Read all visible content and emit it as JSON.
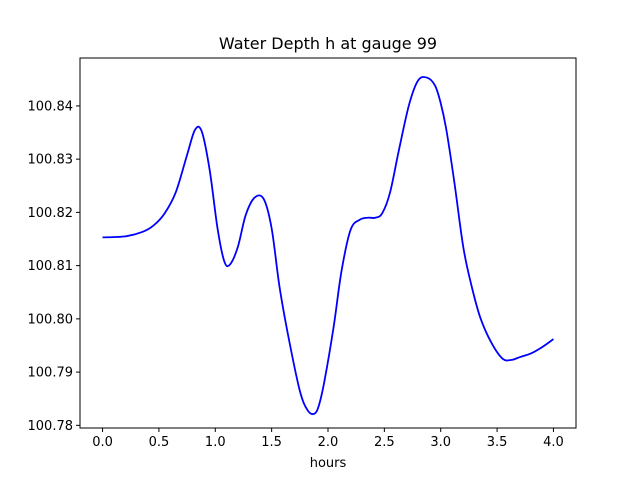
{
  "chart_data": {
    "type": "line",
    "title": "Water Depth h at gauge 99",
    "xlabel": "hours",
    "ylabel": "",
    "xlim": [
      -0.2,
      4.2
    ],
    "ylim": [
      100.7795,
      100.849
    ],
    "xticks": [
      0.0,
      0.5,
      1.0,
      1.5,
      2.0,
      2.5,
      3.0,
      3.5,
      4.0
    ],
    "xtick_labels": [
      "0.0",
      "0.5",
      "1.0",
      "1.5",
      "2.0",
      "2.5",
      "3.0",
      "3.5",
      "4.0"
    ],
    "yticks": [
      100.78,
      100.79,
      100.8,
      100.81,
      100.82,
      100.83,
      100.84
    ],
    "ytick_labels": [
      "100.78",
      "100.79",
      "100.80",
      "100.81",
      "100.82",
      "100.83",
      "100.84"
    ],
    "grid": false,
    "series": [
      {
        "color": "#0000ff",
        "x": [
          0.0,
          0.2,
          0.35,
          0.45,
          0.55,
          0.65,
          0.75,
          0.82,
          0.88,
          0.95,
          1.02,
          1.08,
          1.13,
          1.2,
          1.27,
          1.35,
          1.43,
          1.5,
          1.57,
          1.65,
          1.75,
          1.82,
          1.88,
          1.92,
          1.97,
          2.05,
          2.12,
          2.2,
          2.28,
          2.35,
          2.42,
          2.48,
          2.55,
          2.63,
          2.72,
          2.8,
          2.88,
          2.95,
          3.0,
          3.05,
          3.12,
          3.2,
          3.27,
          3.35,
          3.45,
          3.55,
          3.63,
          3.7,
          3.8,
          3.9,
          4.0
        ],
        "y": [
          100.8153,
          100.8155,
          100.8163,
          100.8175,
          100.8198,
          100.8238,
          100.8308,
          100.8355,
          100.8352,
          100.828,
          100.817,
          100.8108,
          100.8102,
          100.8135,
          100.8195,
          100.8228,
          100.8225,
          100.817,
          100.806,
          100.7965,
          100.7865,
          100.7828,
          100.7822,
          100.7838,
          100.7885,
          100.7985,
          100.809,
          100.8167,
          100.8186,
          100.819,
          100.819,
          100.8198,
          100.8237,
          100.8318,
          100.8403,
          100.8448,
          100.8453,
          100.8438,
          100.8405,
          100.8355,
          100.8258,
          100.8135,
          100.8065,
          100.8003,
          100.7955,
          100.7925,
          100.7923,
          100.7928,
          100.7935,
          100.7947,
          100.7962
        ]
      }
    ]
  }
}
